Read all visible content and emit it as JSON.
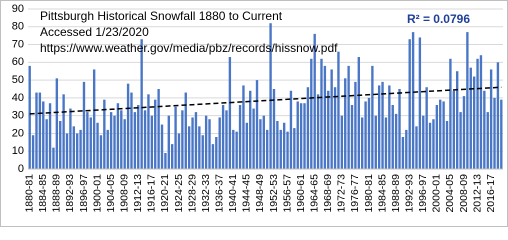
{
  "chart_data": {
    "type": "bar",
    "title": "Pittsburgh Historical Snowfall 1880 to Current",
    "subtitle": "Accessed 1/23/2020",
    "source": "https://www.weather.gov/media/pbz/records/hissnow.pdf",
    "annotation": "R² = 0.0796",
    "categories": [
      "1880-81",
      null,
      null,
      null,
      "1884-85",
      null,
      null,
      null,
      "1888-89",
      null,
      null,
      null,
      "1892-93",
      null,
      null,
      null,
      "1896-97",
      null,
      null,
      null,
      "1900-01",
      null,
      null,
      null,
      "1904-05",
      null,
      null,
      null,
      "1908-09",
      null,
      null,
      null,
      "1912-13",
      null,
      null,
      null,
      "1916-17",
      null,
      null,
      null,
      "1920-21",
      null,
      null,
      null,
      "1924-25",
      null,
      null,
      null,
      "1928-29",
      null,
      null,
      null,
      "1932-33",
      null,
      null,
      null,
      "1936-37",
      null,
      null,
      null,
      "1940-41",
      null,
      null,
      null,
      "1944-45",
      null,
      null,
      null,
      "1948-49",
      null,
      null,
      null,
      "1952-53",
      null,
      null,
      null,
      "1956-57",
      null,
      null,
      null,
      "1960-61",
      null,
      null,
      null,
      "1964-65",
      null,
      null,
      null,
      "1968-69",
      null,
      null,
      null,
      "1972-73",
      null,
      null,
      null,
      "1976-77",
      null,
      null,
      null,
      "1980-81",
      null,
      null,
      null,
      "1984-85",
      null,
      null,
      null,
      "1988-89",
      null,
      null,
      null,
      "1992-93",
      null,
      null,
      null,
      "1996-97",
      null,
      null,
      null,
      "2000-01",
      null,
      null,
      null,
      "2004-05",
      null,
      null,
      null,
      "2008-09",
      null,
      null,
      null,
      "2012-13",
      null,
      null,
      null,
      "2016-17",
      null,
      null,
      null
    ],
    "values": [
      58,
      19,
      43,
      43,
      38,
      28,
      37,
      12,
      51,
      27,
      42,
      20,
      34,
      24,
      20,
      22,
      49,
      32,
      29,
      56,
      26,
      19,
      39,
      22,
      32,
      30,
      37,
      33,
      28,
      48,
      43,
      32,
      36,
      73,
      33,
      42,
      30,
      39,
      45,
      25,
      9,
      30,
      14,
      35,
      20,
      33,
      43,
      24,
      29,
      32,
      24,
      19,
      30,
      28,
      14,
      18,
      29,
      36,
      33,
      63,
      22,
      21,
      36,
      47,
      26,
      44,
      34,
      50,
      28,
      30,
      22,
      82,
      45,
      27,
      22,
      26,
      21,
      44,
      23,
      38,
      37,
      37,
      46,
      62,
      76,
      42,
      62,
      58,
      44,
      56,
      46,
      66,
      30,
      51,
      58,
      36,
      49,
      63,
      29,
      38,
      40,
      58,
      30,
      47,
      49,
      29,
      47,
      36,
      31,
      45,
      18,
      22,
      73,
      77,
      24,
      74,
      30,
      46,
      26,
      28,
      36,
      39,
      38,
      27,
      62,
      44,
      55,
      32,
      41,
      77,
      57,
      52,
      62,
      64,
      44,
      32,
      56,
      40,
      60,
      39
    ],
    "color": "#4a76c6",
    "trendline": {
      "start": 31,
      "end": 46,
      "color": "#000000"
    },
    "ylim": [
      0,
      90
    ],
    "yticks": [
      0,
      10,
      20,
      30,
      40,
      50,
      60,
      70,
      80,
      90
    ],
    "grid": true
  }
}
